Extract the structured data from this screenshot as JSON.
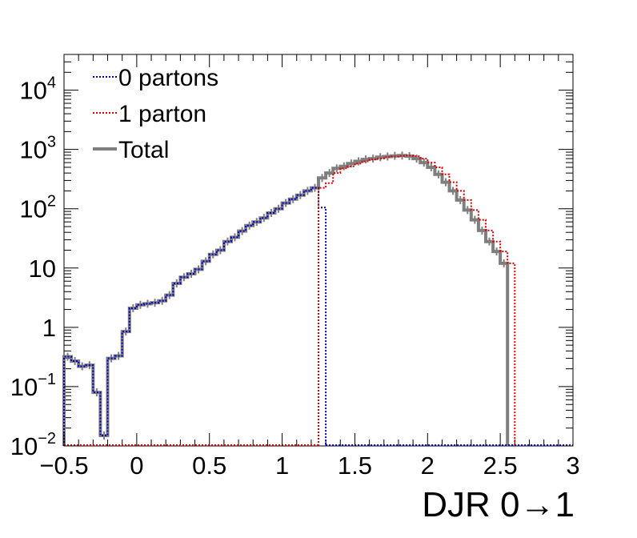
{
  "chart_data": {
    "type": "histogram-line",
    "title": "",
    "xlabel": "DJR 0→1",
    "ylabel": "",
    "xlim": [
      -0.5,
      3
    ],
    "ylim": [
      0.01,
      40000
    ],
    "yscale": "log",
    "bin_width": 0.05,
    "x_ticks": [
      "−0.5",
      "0",
      "0.5",
      "1",
      "1.5",
      "2",
      "2.5",
      "3"
    ],
    "x_tick_values": [
      -0.5,
      0,
      0.5,
      1,
      1.5,
      2,
      2.5,
      3
    ],
    "y_ticks": [
      {
        "value": 0.01,
        "base": "10",
        "exp": "−2"
      },
      {
        "value": 0.1,
        "base": "10",
        "exp": "−1"
      },
      {
        "value": 1,
        "base": "1",
        "exp": ""
      },
      {
        "value": 10,
        "base": "10",
        "exp": ""
      },
      {
        "value": 100,
        "base": "10",
        "exp": "2"
      },
      {
        "value": 1000,
        "base": "10",
        "exp": "3"
      },
      {
        "value": 10000,
        "base": "10",
        "exp": "4"
      }
    ],
    "legend_position": "top-left",
    "series": [
      {
        "name": "0 partons",
        "color": "#0000cc",
        "style": "dotted",
        "x_start": -0.5,
        "values": [
          0.32,
          0.27,
          0.22,
          0.23,
          0.08,
          0.015,
          0.3,
          0.33,
          0.85,
          2.1,
          2.4,
          2.5,
          2.6,
          2.8,
          3.5,
          5.5,
          7.0,
          8.0,
          9.5,
          13,
          17,
          20,
          28,
          33,
          42,
          52,
          60,
          70,
          85,
          100,
          125,
          145,
          170,
          200,
          225,
          105
        ]
      },
      {
        "name": "1 parton",
        "color": "#dd0000",
        "style": "dotted",
        "x_start": 1.25,
        "values": [
          225,
          270,
          400,
          480,
          520,
          580,
          630,
          680,
          700,
          740,
          760,
          780,
          790,
          770,
          700,
          600,
          500,
          380,
          280,
          200,
          140,
          95,
          65,
          43,
          28,
          19,
          12
        ]
      },
      {
        "name": "Total",
        "color": "#7f7f7f",
        "style": "solid",
        "x_start": -0.5,
        "values": [
          0.32,
          0.27,
          0.22,
          0.23,
          0.08,
          0.015,
          0.3,
          0.33,
          0.85,
          2.1,
          2.4,
          2.5,
          2.6,
          2.8,
          3.5,
          5.5,
          7.0,
          8.0,
          9.5,
          13,
          17,
          20,
          28,
          33,
          42,
          52,
          60,
          70,
          85,
          100,
          125,
          145,
          170,
          200,
          225,
          330,
          400,
          480,
          520,
          580,
          630,
          680,
          700,
          740,
          760,
          780,
          790,
          770,
          700,
          600,
          500,
          380,
          280,
          200,
          140,
          95,
          65,
          43,
          28,
          19,
          12
        ]
      }
    ]
  }
}
